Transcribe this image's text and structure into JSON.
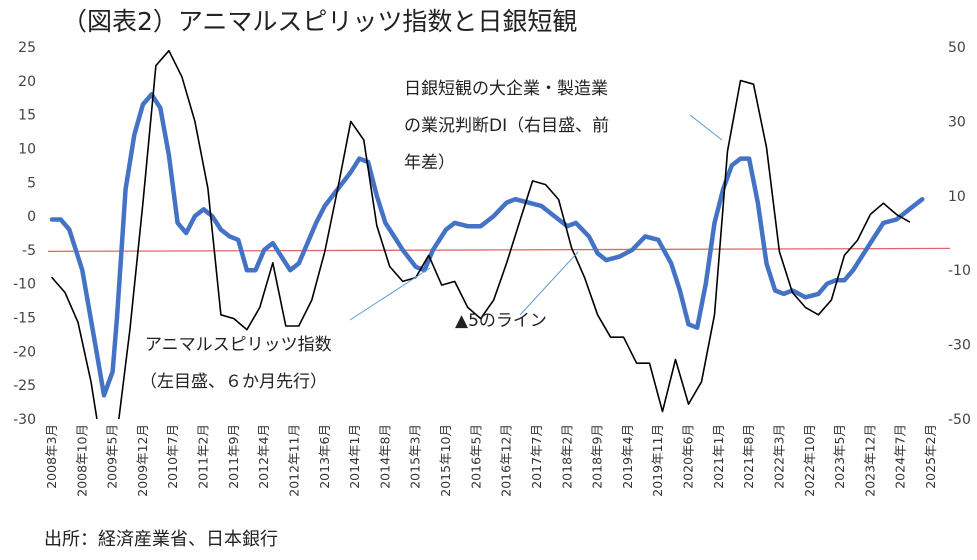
{
  "chart_data": {
    "type": "line",
    "title": "（図表2）アニマルスピリッツ指数と日銀短観",
    "source": "出所：経済産業省、日本銀行",
    "x_ticks": [
      "2008年3月",
      "2008年10月",
      "2009年5月",
      "2009年12月",
      "2010年7月",
      "2011年2月",
      "2011年9月",
      "2012年4月",
      "2012年11月",
      "2013年6月",
      "2014年1月",
      "2014年8月",
      "2015年3月",
      "2015年10月",
      "2016年5月",
      "2016年12月",
      "2017年7月",
      "2018年2月",
      "2018年9月",
      "2019年4月",
      "2019年11月",
      "2020年6月",
      "2021年1月",
      "2021年8月",
      "2022年3月",
      "2022年10月",
      "2023年5月",
      "2023年12月",
      "2024年7月",
      "2025年2月"
    ],
    "left_axis": {
      "ylim": [
        -30,
        25
      ],
      "ticks": [
        25,
        20,
        15,
        10,
        5,
        0,
        -5,
        -10,
        -15,
        -20,
        -25,
        -30
      ]
    },
    "right_axis": {
      "ylim": [
        -50,
        50
      ],
      "ticks": [
        50,
        30,
        10,
        -10,
        -30,
        -50
      ]
    },
    "grid": false,
    "series": [
      {
        "name": "アニマルスピリッツ指数",
        "axis": "left",
        "color": "#4472C4",
        "x": [
          "2008-03",
          "2008-05",
          "2008-07",
          "2008-10",
          "2009-01",
          "2009-03",
          "2009-05",
          "2009-06",
          "2009-08",
          "2009-10",
          "2009-12",
          "2010-02",
          "2010-04",
          "2010-06",
          "2010-08",
          "2010-10",
          "2010-12",
          "2011-02",
          "2011-04",
          "2011-06",
          "2011-08",
          "2011-10",
          "2011-12",
          "2012-02",
          "2012-04",
          "2012-06",
          "2012-08",
          "2012-10",
          "2012-12",
          "2013-02",
          "2013-04",
          "2013-06",
          "2013-09",
          "2013-12",
          "2014-02",
          "2014-04",
          "2014-06",
          "2014-08",
          "2014-10",
          "2014-12",
          "2015-03",
          "2015-05",
          "2015-07",
          "2015-10",
          "2015-12",
          "2016-03",
          "2016-06",
          "2016-09",
          "2016-12",
          "2017-02",
          "2017-05",
          "2017-08",
          "2017-11",
          "2018-02",
          "2018-04",
          "2018-07",
          "2018-09",
          "2018-11",
          "2019-02",
          "2019-05",
          "2019-08",
          "2019-11",
          "2020-02",
          "2020-04",
          "2020-06",
          "2020-08",
          "2020-10",
          "2020-12",
          "2021-02",
          "2021-04",
          "2021-06",
          "2021-08",
          "2021-10",
          "2021-12",
          "2022-02",
          "2022-04",
          "2022-06",
          "2022-09",
          "2022-12",
          "2023-02",
          "2023-04",
          "2023-06",
          "2023-08",
          "2023-10",
          "2023-12",
          "2024-03",
          "2024-06",
          "2024-09",
          "2024-12"
        ],
        "values": [
          -0.5,
          -0.5,
          -2,
          -8,
          -19,
          -26.5,
          -23,
          -15,
          4,
          12,
          16.5,
          18,
          16,
          9,
          -1,
          -2.5,
          0,
          1,
          0,
          -2,
          -3,
          -3.5,
          -8,
          -8,
          -5,
          -4,
          -6,
          -8,
          -7,
          -4,
          -1,
          1.5,
          4,
          6.5,
          8.5,
          8,
          3,
          -1,
          -3,
          -5,
          -7.5,
          -8,
          -5,
          -2,
          -1,
          -1.5,
          -1.5,
          0,
          2,
          2.5,
          2,
          1.5,
          0,
          -1.5,
          -1,
          -3,
          -5.5,
          -6.5,
          -6,
          -5,
          -3,
          -3.5,
          -7,
          -11,
          -16,
          -16.5,
          -10,
          -1,
          4,
          7.5,
          8.5,
          8.5,
          2,
          -7,
          -11,
          -11.5,
          -11,
          -12,
          -11.5,
          -10,
          -9.5,
          -9.5,
          -8,
          -6,
          -4,
          -1,
          -0.5,
          1,
          2.5
        ]
      },
      {
        "name": "日銀短観の大企業・製造業の業況判断DI（右目盛、前年差）",
        "axis": "right",
        "color": "#000000",
        "x": [
          "2008-03",
          "2008-06",
          "2008-09",
          "2008-12",
          "2009-03",
          "2009-06",
          "2009-09",
          "2009-12",
          "2010-03",
          "2010-06",
          "2010-09",
          "2010-12",
          "2011-03",
          "2011-06",
          "2011-09",
          "2011-12",
          "2012-03",
          "2012-06",
          "2012-09",
          "2012-12",
          "2013-03",
          "2013-06",
          "2013-09",
          "2013-12",
          "2014-03",
          "2014-06",
          "2014-09",
          "2014-12",
          "2015-03",
          "2015-06",
          "2015-09",
          "2015-12",
          "2016-03",
          "2016-06",
          "2016-09",
          "2016-12",
          "2017-03",
          "2017-06",
          "2017-09",
          "2017-12",
          "2018-03",
          "2018-06",
          "2018-09",
          "2018-12",
          "2019-03",
          "2019-06",
          "2019-09",
          "2019-12",
          "2020-03",
          "2020-06",
          "2020-09",
          "2020-12",
          "2021-03",
          "2021-06",
          "2021-09",
          "2021-12",
          "2022-03",
          "2022-06",
          "2022-09",
          "2022-12",
          "2023-03",
          "2023-06",
          "2023-09",
          "2023-12",
          "2024-03",
          "2024-06",
          "2024-09"
        ],
        "values": [
          -12,
          -16,
          -24,
          -40,
          -62,
          -54,
          -26,
          8,
          45,
          49,
          42,
          30,
          12,
          -22,
          -23,
          -26,
          -20,
          -8,
          -25,
          -25,
          -18,
          -5,
          12,
          30,
          25,
          2,
          -9,
          -13,
          -12,
          -6,
          -14,
          -13,
          -20,
          -23,
          -18,
          -8,
          3,
          14,
          13,
          9,
          -4,
          -12,
          -22,
          -28,
          -28,
          -35,
          -35,
          -48,
          -34,
          -46,
          -40,
          -22,
          22,
          41,
          40,
          23,
          -5,
          -16,
          -20,
          -22,
          -18,
          -6,
          -2,
          5,
          8,
          5,
          3
        ]
      }
    ],
    "reference_lines": [
      {
        "label": "▲5のライン",
        "axis": "left",
        "y": -5,
        "color": "#E06666"
      }
    ],
    "annotations": {
      "right_series_label": [
        "日銀短観の大企業・製造業",
        "の業況判断DI（右目盛、前",
        "年差）"
      ],
      "left_series_label": [
        "アニマルスピリッツ指数",
        "（左目盛、６か月先行）"
      ],
      "reference_label": "▲5のライン"
    }
  }
}
